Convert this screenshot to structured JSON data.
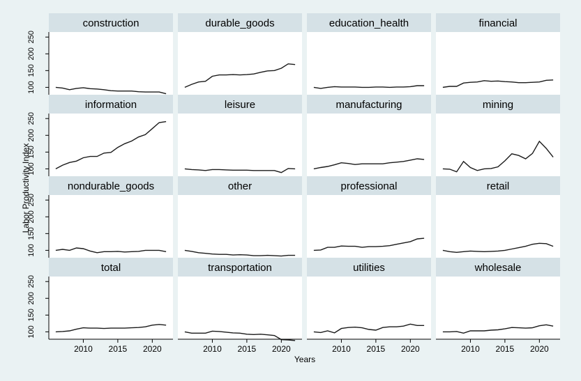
{
  "chart_data": {
    "type": "line",
    "layout": "small-multiples 4x4",
    "xlabel": "Years",
    "ylabel": "Labor Productivity Index",
    "x_ticks": [
      2010,
      2015,
      2020
    ],
    "y_ticks": [
      100,
      150,
      200,
      250
    ],
    "xlim": [
      2005,
      2023
    ],
    "ylim": [
      78,
      265
    ],
    "x": [
      2006,
      2007,
      2008,
      2009,
      2010,
      2011,
      2012,
      2013,
      2014,
      2015,
      2016,
      2017,
      2018,
      2019,
      2020,
      2021,
      2022
    ],
    "panel_header_color": "#d5e1e6",
    "line_color": "#1a1a1a",
    "series": [
      {
        "name": "construction",
        "values": [
          100,
          98,
          93,
          97,
          99,
          96,
          95,
          93,
          90,
          89,
          89,
          89,
          87,
          86,
          86,
          86,
          81
        ]
      },
      {
        "name": "durable_goods",
        "values": [
          100,
          109,
          116,
          118,
          133,
          137,
          137,
          138,
          137,
          138,
          140,
          145,
          149,
          150,
          157,
          170,
          168
        ]
      },
      {
        "name": "education_health",
        "values": [
          100,
          97,
          100,
          102,
          101,
          101,
          101,
          100,
          100,
          101,
          101,
          100,
          101,
          101,
          102,
          105,
          105
        ]
      },
      {
        "name": "financial",
        "values": [
          100,
          103,
          103,
          113,
          115,
          116,
          120,
          118,
          119,
          117,
          116,
          114,
          114,
          115,
          116,
          121,
          122
        ]
      },
      {
        "name": "information",
        "values": [
          100,
          111,
          119,
          123,
          133,
          137,
          137,
          147,
          149,
          164,
          175,
          183,
          195,
          202,
          220,
          238,
          241
        ]
      },
      {
        "name": "leisure",
        "values": [
          100,
          98,
          97,
          95,
          98,
          98,
          97,
          96,
          96,
          96,
          95,
          95,
          95,
          95,
          89,
          101,
          100
        ]
      },
      {
        "name": "manufacturing",
        "values": [
          100,
          104,
          107,
          112,
          118,
          116,
          113,
          115,
          115,
          115,
          115,
          118,
          120,
          122,
          126,
          130,
          128
        ]
      },
      {
        "name": "mining",
        "values": [
          100,
          99,
          91,
          122,
          104,
          95,
          100,
          101,
          106,
          124,
          145,
          140,
          130,
          146,
          182,
          161,
          135
        ]
      },
      {
        "name": "nondurable_goods",
        "values": [
          100,
          103,
          100,
          107,
          105,
          98,
          93,
          96,
          96,
          97,
          95,
          96,
          97,
          100,
          100,
          100,
          96
        ]
      },
      {
        "name": "other",
        "values": [
          100,
          97,
          93,
          91,
          89,
          88,
          88,
          86,
          87,
          86,
          84,
          84,
          85,
          84,
          83,
          85,
          85
        ]
      },
      {
        "name": "professional",
        "values": [
          100,
          101,
          109,
          109,
          113,
          112,
          112,
          109,
          111,
          111,
          112,
          114,
          118,
          122,
          126,
          134,
          136
        ]
      },
      {
        "name": "retail",
        "values": [
          100,
          96,
          94,
          96,
          98,
          97,
          96,
          97,
          98,
          100,
          104,
          108,
          112,
          118,
          121,
          120,
          112
        ]
      },
      {
        "name": "total",
        "values": [
          100,
          101,
          103,
          108,
          112,
          111,
          111,
          110,
          111,
          111,
          111,
          112,
          113,
          115,
          120,
          122,
          120
        ]
      },
      {
        "name": "transportation",
        "values": [
          100,
          96,
          96,
          96,
          102,
          101,
          99,
          97,
          96,
          93,
          92,
          93,
          91,
          89,
          77,
          76,
          74
        ]
      },
      {
        "name": "utilities",
        "values": [
          100,
          98,
          103,
          97,
          110,
          113,
          114,
          112,
          107,
          105,
          113,
          115,
          115,
          117,
          123,
          119,
          119
        ]
      },
      {
        "name": "wholesale",
        "values": [
          100,
          100,
          101,
          96,
          103,
          103,
          103,
          105,
          106,
          109,
          113,
          112,
          111,
          112,
          118,
          121,
          117
        ]
      }
    ]
  }
}
